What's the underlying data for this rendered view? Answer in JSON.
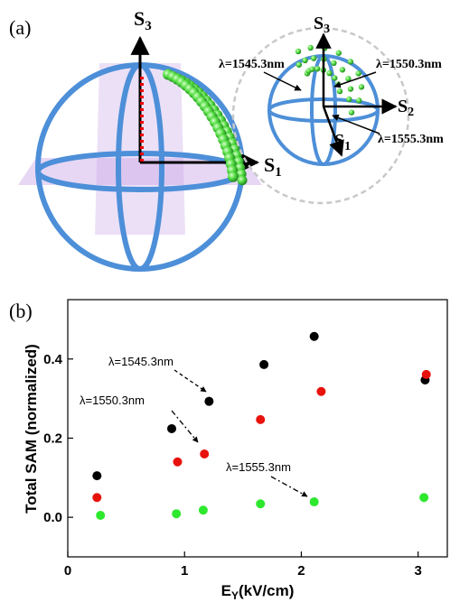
{
  "panel_a": {
    "label": "(a)",
    "left_sphere": {
      "s3": {
        "label": "S",
        "sub": "3"
      },
      "s1": {
        "label": "S",
        "sub": "1"
      }
    },
    "right_sphere": {
      "s3": {
        "label": "S",
        "sub": "3"
      },
      "s2": {
        "label": "S",
        "sub": "2"
      },
      "s1": {
        "label": "S",
        "sub": "1"
      },
      "wavelengths": [
        "λ=1545.3nm",
        "λ=1550.3nm",
        "λ=1555.3nm"
      ]
    }
  },
  "chart_data": {
    "type": "scatter",
    "panel_label": "(b)",
    "x_label": [
      "E",
      "Y",
      "(kV/cm)"
    ],
    "y_label": "Total SAM (normalized)",
    "xlim": [
      0,
      3.25
    ],
    "ylim": [
      -0.1,
      0.55
    ],
    "xticks": [
      0,
      1,
      2,
      3
    ],
    "yticks": [
      {
        "value": 0,
        "label": "0.0"
      },
      {
        "value": 0.2,
        "label": "0.2"
      },
      {
        "value": 0.4,
        "label": "0.4"
      }
    ],
    "grid": false,
    "series": [
      {
        "name": "λ=1545.3nm",
        "color": "#000000",
        "x": [
          0.25,
          0.89,
          1.21,
          1.68,
          2.11,
          3.06
        ],
        "values": [
          0.105,
          0.224,
          0.293,
          0.386,
          0.457,
          0.347
        ]
      },
      {
        "name": "λ=1550.3nm",
        "color": "#e8120c",
        "x": [
          0.25,
          0.94,
          1.17,
          1.65,
          2.17,
          3.07
        ],
        "values": [
          0.05,
          0.14,
          0.16,
          0.247,
          0.318,
          0.361
        ]
      },
      {
        "name": "λ=1555.3nm",
        "color": "#2ee82e",
        "x": [
          0.28,
          0.93,
          1.16,
          1.65,
          2.11,
          3.05
        ],
        "values": [
          0.005,
          0.009,
          0.018,
          0.034,
          0.039,
          0.05
        ]
      }
    ]
  }
}
